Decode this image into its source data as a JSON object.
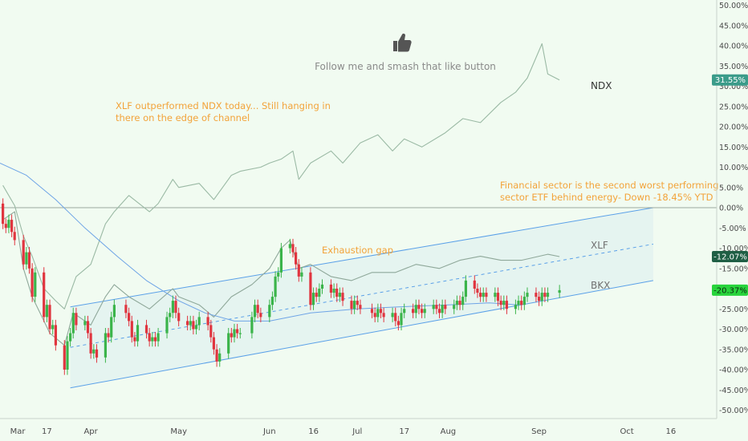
{
  "colors": {
    "background": "#f1fbf1",
    "up": "#3bb44a",
    "down": "#e0353f",
    "channel": "#5aa0e8",
    "ndx_line": "#9ab9a4",
    "xlf_line": "#8fa89a",
    "ma": "#6ea4e6",
    "annotation": "#f2a33a",
    "badge_ndx": "#3b9c8a",
    "badge_xlf": "#1f5f45",
    "badge_bkx": "#28d43c"
  },
  "annotations": {
    "follow": "Follow me and smash that like button",
    "xlf_line1": "XLF outperformed NDX today...  Still hanging in",
    "xlf_line2": "there on the edge of channel",
    "fin_line1": "Financial sector is the second worst performing",
    "fin_line2": "sector ETF behind energy-  Down -18.45% YTD",
    "gap": "Exhaustion gap",
    "thumbs_icon": "thumbs-up-icon"
  },
  "chart_data": {
    "type": "line",
    "x_axis": {
      "ticks": [
        "Mar",
        "17",
        "Apr",
        "May",
        "Jun",
        "16",
        "Jul",
        "17",
        "Aug",
        "Sep",
        "Oct",
        "16"
      ],
      "range": [
        "2020-03-01",
        "2020-10-18"
      ]
    },
    "y_axis": {
      "unit": "%",
      "range": [
        -52,
        50
      ],
      "ticks": [
        "50.00%",
        "45.00%",
        "40.00%",
        "35.00%",
        "30.00%",
        "25.00%",
        "20.00%",
        "15.00%",
        "10.00%",
        "5.00%",
        "0.00%",
        "-5.00%",
        "-10.00%",
        "-15.00%",
        "-20.00%",
        "-25.00%",
        "-30.00%",
        "-35.00%",
        "-40.00%",
        "-45.00%",
        "-50.00%"
      ]
    },
    "series": [
      {
        "name": "NDX",
        "last_value_label": "31.55%",
        "x": [
          "2020-03-02",
          "2020-03-06",
          "2020-03-09",
          "2020-03-12",
          "2020-03-16",
          "2020-03-20",
          "2020-03-23",
          "2020-03-27",
          "2020-04-01",
          "2020-04-06",
          "2020-04-09",
          "2020-04-14",
          "2020-04-21",
          "2020-04-24",
          "2020-04-29",
          "2020-05-01",
          "2020-05-08",
          "2020-05-13",
          "2020-05-19",
          "2020-05-22",
          "2020-05-29",
          "2020-06-01",
          "2020-06-05",
          "2020-06-09",
          "2020-06-11",
          "2020-06-15",
          "2020-06-22",
          "2020-06-26",
          "2020-07-02",
          "2020-07-08",
          "2020-07-13",
          "2020-07-17",
          "2020-07-23",
          "2020-07-31",
          "2020-08-06",
          "2020-08-12",
          "2020-08-19",
          "2020-08-24",
          "2020-08-28",
          "2020-09-02",
          "2020-09-04",
          "2020-09-08"
        ],
        "values": [
          5.5,
          0.5,
          -7,
          -12,
          -20,
          -23,
          -25,
          -17,
          -14,
          -4,
          -1,
          3,
          -1,
          1,
          7,
          5,
          6,
          2,
          8,
          9,
          10,
          11,
          12,
          14,
          7,
          11,
          14,
          11,
          16,
          18,
          14,
          17,
          15,
          18.5,
          22,
          21,
          26,
          28.5,
          32,
          40.5,
          33,
          31.55
        ]
      },
      {
        "name": "XLF",
        "last_value_label": "-12.07%",
        "x": [
          "2020-03-02",
          "2020-03-06",
          "2020-03-09",
          "2020-03-12",
          "2020-03-16",
          "2020-03-18",
          "2020-03-23",
          "2020-03-26",
          "2020-04-01",
          "2020-04-06",
          "2020-04-09",
          "2020-04-14",
          "2020-04-21",
          "2020-04-29",
          "2020-05-01",
          "2020-05-08",
          "2020-05-13",
          "2020-05-19",
          "2020-05-26",
          "2020-06-01",
          "2020-06-05",
          "2020-06-08",
          "2020-06-11",
          "2020-06-15",
          "2020-06-22",
          "2020-06-29",
          "2020-07-06",
          "2020-07-14",
          "2020-07-21",
          "2020-07-29",
          "2020-08-05",
          "2020-08-12",
          "2020-08-19",
          "2020-08-26",
          "2020-09-01",
          "2020-09-04",
          "2020-09-08"
        ],
        "values": [
          -3,
          -1,
          -15,
          -22,
          -28,
          -31,
          -34,
          -26,
          -29,
          -22,
          -19,
          -22,
          -25,
          -20,
          -22,
          -24,
          -27,
          -22,
          -19,
          -15,
          -10,
          -8,
          -15,
          -14,
          -17,
          -18,
          -16,
          -16,
          -14,
          -15,
          -13,
          -12,
          -13,
          -13,
          -12,
          -11.5,
          -12.07
        ]
      },
      {
        "name": "BKX",
        "last_value_label": "-20.37%",
        "ohlc_note": "daily candles",
        "candles": [
          {
            "x": "2020-03-02",
            "o": 1,
            "c": -4
          },
          {
            "x": "2020-03-03",
            "o": -4,
            "c": -5
          },
          {
            "x": "2020-03-04",
            "o": -5,
            "c": -3
          },
          {
            "x": "2020-03-05",
            "o": -3,
            "c": -6
          },
          {
            "x": "2020-03-06",
            "o": -6,
            "c": -8
          },
          {
            "x": "2020-03-09",
            "o": -8,
            "c": -14
          },
          {
            "x": "2020-03-10",
            "o": -14,
            "c": -11
          },
          {
            "x": "2020-03-11",
            "o": -11,
            "c": -15
          },
          {
            "x": "2020-03-12",
            "o": -15,
            "c": -22
          },
          {
            "x": "2020-03-13",
            "o": -22,
            "c": -16
          },
          {
            "x": "2020-03-16",
            "o": -16,
            "c": -27
          },
          {
            "x": "2020-03-17",
            "o": -27,
            "c": -24
          },
          {
            "x": "2020-03-18",
            "o": -24,
            "c": -30
          },
          {
            "x": "2020-03-19",
            "o": -30,
            "c": -29
          },
          {
            "x": "2020-03-20",
            "o": -29,
            "c": -34
          },
          {
            "x": "2020-03-23",
            "o": -34,
            "c": -40
          },
          {
            "x": "2020-03-24",
            "o": -40,
            "c": -33
          },
          {
            "x": "2020-03-25",
            "o": -33,
            "c": -31
          },
          {
            "x": "2020-03-26",
            "o": -31,
            "c": -26
          },
          {
            "x": "2020-03-27",
            "o": -26,
            "c": -29
          },
          {
            "x": "2020-03-30",
            "o": -29,
            "c": -28
          },
          {
            "x": "2020-03-31",
            "o": -28,
            "c": -31
          },
          {
            "x": "2020-04-01",
            "o": -31,
            "c": -36
          },
          {
            "x": "2020-04-02",
            "o": -36,
            "c": -35
          },
          {
            "x": "2020-04-03",
            "o": -35,
            "c": -37
          },
          {
            "x": "2020-04-06",
            "o": -37,
            "c": -31
          },
          {
            "x": "2020-04-07",
            "o": -31,
            "c": -32
          },
          {
            "x": "2020-04-08",
            "o": -32,
            "c": -27
          },
          {
            "x": "2020-04-09",
            "o": -27,
            "c": -24
          },
          {
            "x": "2020-04-13",
            "o": -24,
            "c": -26
          },
          {
            "x": "2020-04-14",
            "o": -26,
            "c": -28
          },
          {
            "x": "2020-04-15",
            "o": -28,
            "c": -32
          },
          {
            "x": "2020-04-16",
            "o": -32,
            "c": -33
          },
          {
            "x": "2020-04-17",
            "o": -33,
            "c": -29
          },
          {
            "x": "2020-04-20",
            "o": -29,
            "c": -31
          },
          {
            "x": "2020-04-21",
            "o": -31,
            "c": -33
          },
          {
            "x": "2020-04-22",
            "o": -33,
            "c": -32
          },
          {
            "x": "2020-04-23",
            "o": -32,
            "c": -33
          },
          {
            "x": "2020-04-24",
            "o": -33,
            "c": -31
          },
          {
            "x": "2020-04-27",
            "o": -31,
            "c": -27
          },
          {
            "x": "2020-04-28",
            "o": -27,
            "c": -26
          },
          {
            "x": "2020-04-29",
            "o": -26,
            "c": -23
          },
          {
            "x": "2020-04-30",
            "o": -23,
            "c": -26
          },
          {
            "x": "2020-05-01",
            "o": -26,
            "c": -28
          },
          {
            "x": "2020-05-04",
            "o": -28,
            "c": -29
          },
          {
            "x": "2020-05-05",
            "o": -29,
            "c": -28
          },
          {
            "x": "2020-05-06",
            "o": -28,
            "c": -30
          },
          {
            "x": "2020-05-07",
            "o": -30,
            "c": -29
          },
          {
            "x": "2020-05-08",
            "o": -29,
            "c": -27
          },
          {
            "x": "2020-05-11",
            "o": -27,
            "c": -29
          },
          {
            "x": "2020-05-12",
            "o": -29,
            "c": -32
          },
          {
            "x": "2020-05-13",
            "o": -32,
            "c": -35
          },
          {
            "x": "2020-05-14",
            "o": -35,
            "c": -38
          },
          {
            "x": "2020-05-15",
            "o": -38,
            "c": -36
          },
          {
            "x": "2020-05-18",
            "o": -36,
            "c": -31
          },
          {
            "x": "2020-05-19",
            "o": -31,
            "c": -32
          },
          {
            "x": "2020-05-20",
            "o": -32,
            "c": -30
          },
          {
            "x": "2020-05-21",
            "o": -30,
            "c": -31
          },
          {
            "x": "2020-05-22",
            "o": -31,
            "c": -31
          },
          {
            "x": "2020-05-26",
            "o": -31,
            "c": -27
          },
          {
            "x": "2020-05-27",
            "o": -27,
            "c": -24
          },
          {
            "x": "2020-05-28",
            "o": -24,
            "c": -26
          },
          {
            "x": "2020-05-29",
            "o": -26,
            "c": -27
          },
          {
            "x": "2020-06-01",
            "o": -27,
            "c": -24
          },
          {
            "x": "2020-06-02",
            "o": -24,
            "c": -22
          },
          {
            "x": "2020-06-03",
            "o": -22,
            "c": -17
          },
          {
            "x": "2020-06-04",
            "o": -17,
            "c": -16
          },
          {
            "x": "2020-06-05",
            "o": -16,
            "c": -10
          },
          {
            "x": "2020-06-08",
            "o": -10,
            "c": -9
          },
          {
            "x": "2020-06-09",
            "o": -9,
            "c": -11
          },
          {
            "x": "2020-06-10",
            "o": -11,
            "c": -14
          },
          {
            "x": "2020-06-11",
            "o": -14,
            "c": -17
          },
          {
            "x": "2020-06-12",
            "o": -17,
            "c": -16
          },
          {
            "x": "2020-06-15",
            "o": -16,
            "c": -24
          },
          {
            "x": "2020-06-16",
            "o": -24,
            "c": -21
          },
          {
            "x": "2020-06-17",
            "o": -21,
            "c": -22
          },
          {
            "x": "2020-06-18",
            "o": -22,
            "c": -20
          },
          {
            "x": "2020-06-19",
            "o": -20,
            "c": -19
          },
          {
            "x": "2020-06-22",
            "o": -19,
            "c": -21
          },
          {
            "x": "2020-06-23",
            "o": -21,
            "c": -20
          },
          {
            "x": "2020-06-24",
            "o": -20,
            "c": -22
          },
          {
            "x": "2020-06-25",
            "o": -22,
            "c": -21
          },
          {
            "x": "2020-06-26",
            "o": -21,
            "c": -23
          },
          {
            "x": "2020-06-29",
            "o": -23,
            "c": -25
          },
          {
            "x": "2020-06-30",
            "o": -25,
            "c": -23
          },
          {
            "x": "2020-07-01",
            "o": -23,
            "c": -24
          },
          {
            "x": "2020-07-02",
            "o": -24,
            "c": -25
          },
          {
            "x": "2020-07-06",
            "o": -25,
            "c": -26
          },
          {
            "x": "2020-07-07",
            "o": -26,
            "c": -27
          },
          {
            "x": "2020-07-08",
            "o": -27,
            "c": -25
          },
          {
            "x": "2020-07-09",
            "o": -25,
            "c": -26
          },
          {
            "x": "2020-07-10",
            "o": -26,
            "c": -27
          },
          {
            "x": "2020-07-13",
            "o": -27,
            "c": -26
          },
          {
            "x": "2020-07-14",
            "o": -26,
            "c": -28
          },
          {
            "x": "2020-07-15",
            "o": -28,
            "c": -29
          },
          {
            "x": "2020-07-16",
            "o": -29,
            "c": -26
          },
          {
            "x": "2020-07-17",
            "o": -26,
            "c": -25
          },
          {
            "x": "2020-07-20",
            "o": -25,
            "c": -26
          },
          {
            "x": "2020-07-21",
            "o": -26,
            "c": -24
          },
          {
            "x": "2020-07-22",
            "o": -24,
            "c": -25
          },
          {
            "x": "2020-07-23",
            "o": -25,
            "c": -26
          },
          {
            "x": "2020-07-24",
            "o": -26,
            "c": -25
          },
          {
            "x": "2020-07-27",
            "o": -25,
            "c": -24
          },
          {
            "x": "2020-07-28",
            "o": -24,
            "c": -25
          },
          {
            "x": "2020-07-29",
            "o": -25,
            "c": -26
          },
          {
            "x": "2020-07-30",
            "o": -26,
            "c": -24
          },
          {
            "x": "2020-07-31",
            "o": -24,
            "c": -25
          },
          {
            "x": "2020-08-03",
            "o": -25,
            "c": -24
          },
          {
            "x": "2020-08-04",
            "o": -24,
            "c": -23
          },
          {
            "x": "2020-08-05",
            "o": -23,
            "c": -24
          },
          {
            "x": "2020-08-06",
            "o": -24,
            "c": -22
          },
          {
            "x": "2020-08-07",
            "o": -22,
            "c": -18
          },
          {
            "x": "2020-08-10",
            "o": -18,
            "c": -20
          },
          {
            "x": "2020-08-11",
            "o": -20,
            "c": -21
          },
          {
            "x": "2020-08-12",
            "o": -21,
            "c": -22
          },
          {
            "x": "2020-08-13",
            "o": -22,
            "c": -21
          },
          {
            "x": "2020-08-14",
            "o": -21,
            "c": -22
          },
          {
            "x": "2020-08-17",
            "o": -22,
            "c": -21
          },
          {
            "x": "2020-08-18",
            "o": -21,
            "c": -23
          },
          {
            "x": "2020-08-19",
            "o": -23,
            "c": -24
          },
          {
            "x": "2020-08-20",
            "o": -24,
            "c": -23
          },
          {
            "x": "2020-08-21",
            "o": -23,
            "c": -25
          },
          {
            "x": "2020-08-24",
            "o": -25,
            "c": -24
          },
          {
            "x": "2020-08-25",
            "o": -24,
            "c": -23
          },
          {
            "x": "2020-08-26",
            "o": -23,
            "c": -24
          },
          {
            "x": "2020-08-27",
            "o": -24,
            "c": -22
          },
          {
            "x": "2020-08-28",
            "o": -22,
            "c": -21
          },
          {
            "x": "2020-08-31",
            "o": -21,
            "c": -22
          },
          {
            "x": "2020-09-01",
            "o": -22,
            "c": -23
          },
          {
            "x": "2020-09-02",
            "o": -23,
            "c": -21
          },
          {
            "x": "2020-09-03",
            "o": -21,
            "c": -22
          },
          {
            "x": "2020-09-04",
            "o": -22,
            "c": -21
          },
          {
            "x": "2020-09-08",
            "o": -21,
            "c": -20.37
          }
        ]
      },
      {
        "name": "moving-average",
        "x": [
          "2020-03-01",
          "2020-03-10",
          "2020-03-20",
          "2020-03-30",
          "2020-04-10",
          "2020-04-20",
          "2020-05-01",
          "2020-05-10",
          "2020-05-20",
          "2020-06-01",
          "2020-06-15",
          "2020-07-01",
          "2020-07-15",
          "2020-08-01",
          "2020-08-15",
          "2020-08-25"
        ],
        "values": [
          11,
          8,
          2,
          -5,
          -12,
          -18,
          -23,
          -26,
          -28,
          -28,
          -26,
          -25,
          -24.5,
          -24,
          -23.5,
          -24
        ]
      }
    ],
    "channel": {
      "upper": {
        "from": [
          "2020-03-25",
          -24.5
        ],
        "to": [
          "2020-10-10",
          0
        ]
      },
      "lower": {
        "from": [
          "2020-03-25",
          -44.5
        ],
        "to": [
          "2020-10-10",
          -18
        ]
      },
      "mid_dashed": {
        "from": [
          "2020-03-25",
          -34.5
        ],
        "to": [
          "2020-10-10",
          -9
        ]
      }
    },
    "reference_line": 0,
    "grid": false,
    "legend": "none"
  }
}
